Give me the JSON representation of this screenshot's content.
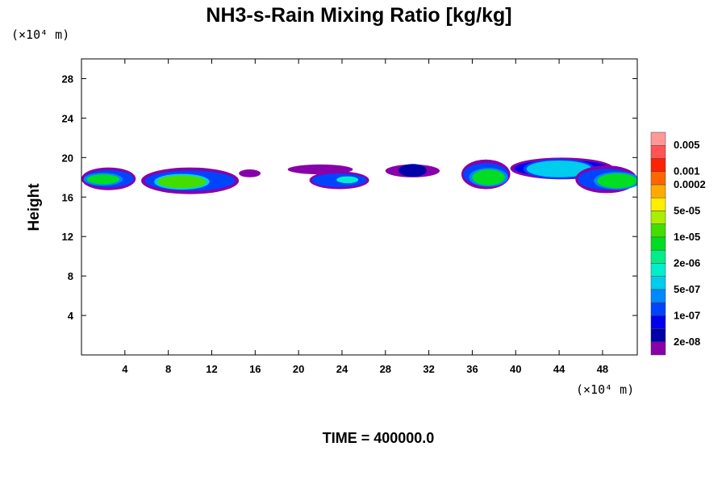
{
  "chart_data": {
    "type": "heatmap",
    "title": "NH3-s-Rain Mixing Ratio [kg/kg]",
    "ylabel": "Height",
    "x_unit_label": "(×10⁴ m)",
    "y_unit_label": "(×10⁴ m)",
    "footer": "TIME = 400000.0",
    "xlim": [
      0,
      51.2
    ],
    "ylim": [
      0,
      30
    ],
    "x_ticks": [
      4,
      8,
      12,
      16,
      20,
      24,
      28,
      32,
      36,
      40,
      44,
      48
    ],
    "y_ticks": [
      4,
      8,
      12,
      16,
      20,
      24,
      28
    ],
    "x_tick_labels": [
      "4",
      "8",
      "12",
      "16",
      "20",
      "24",
      "28",
      "32",
      "36",
      "40",
      "44",
      "48"
    ],
    "y_tick_labels": [
      "4",
      "8",
      "12",
      "16",
      "20",
      "24",
      "28"
    ],
    "colorbar": {
      "colors": [
        "#8800aa",
        "#0000aa",
        "#0000ee",
        "#0044ff",
        "#0088ff",
        "#00ccee",
        "#00eecc",
        "#00ee88",
        "#00dd22",
        "#44dd00",
        "#aaee00",
        "#ffee00",
        "#ffaa00",
        "#ff6600",
        "#ff2200",
        "#ff5555",
        "#ff9999"
      ],
      "labels": [
        "2e-08",
        "1e-07",
        "5e-07",
        "2e-06",
        "1e-05",
        "5e-05",
        "0.0002",
        "0.001",
        "0.005"
      ],
      "label_bands": [
        1,
        3,
        5,
        7,
        9,
        11,
        13,
        14,
        16
      ]
    },
    "regions": [
      {
        "x": [
          0,
          5
        ],
        "y": [
          16.7,
          19.0
        ],
        "level": 3,
        "core": {
          "x": [
            0.5,
            3.5
          ],
          "y": [
            17.3,
            18.3
          ],
          "level": 8
        }
      },
      {
        "x": [
          5.5,
          14.5
        ],
        "y": [
          16.3,
          19.0
        ],
        "level": 3,
        "core": {
          "x": [
            7,
            11.5
          ],
          "y": [
            16.9,
            18.2
          ],
          "level": 9
        }
      },
      {
        "x": [
          14.5,
          16.5
        ],
        "y": [
          18.0,
          18.8
        ],
        "level": 0
      },
      {
        "x": [
          19,
          25
        ],
        "y": [
          18.3,
          19.3
        ],
        "level": 0
      },
      {
        "x": [
          21,
          26.5
        ],
        "y": [
          16.8,
          18.6
        ],
        "level": 3,
        "core": {
          "x": [
            23.5,
            25.5
          ],
          "y": [
            17.4,
            18.1
          ],
          "level": 6
        }
      },
      {
        "x": [
          28,
          33
        ],
        "y": [
          18.0,
          19.3
        ],
        "level": 0,
        "core": {
          "x": [
            29.5,
            31.5
          ],
          "y": [
            18.2,
            19.2
          ],
          "level": 1
        }
      },
      {
        "x": [
          35,
          39.5
        ],
        "y": [
          16.8,
          19.8
        ],
        "level": 3,
        "core": {
          "x": [
            36,
            39
          ],
          "y": [
            17.2,
            18.8
          ],
          "level": 8
        }
      },
      {
        "x": [
          39.5,
          49
        ],
        "y": [
          17.8,
          20.0
        ],
        "level": 2,
        "core": {
          "x": [
            41,
            47
          ],
          "y": [
            18.0,
            19.7
          ],
          "level": 5
        }
      },
      {
        "x": [
          45.5,
          51.2
        ],
        "y": [
          16.4,
          19.2
        ],
        "level": 3,
        "core": {
          "x": [
            47.5,
            51.2
          ],
          "y": [
            16.9,
            18.4
          ],
          "level": 8
        }
      }
    ]
  }
}
